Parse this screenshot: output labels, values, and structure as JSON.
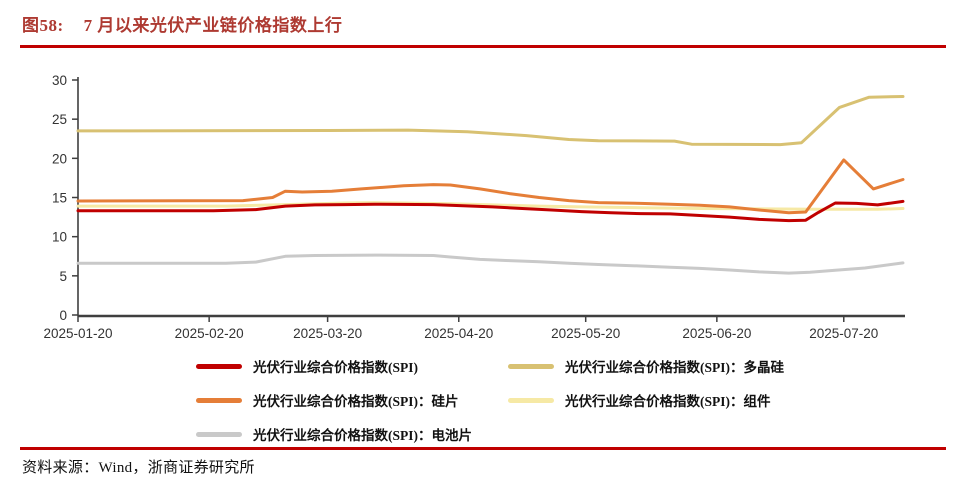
{
  "header": {
    "figure_label": "图58:",
    "title": "7 月以来光伏产业链价格指数上行"
  },
  "source": {
    "text": "资料来源：Wind，浙商证券研究所"
  },
  "colors": {
    "accent_rule": "#C00000",
    "title_text": "#AE3A32",
    "axis": "#3F3F3F",
    "tick_label": "#333333"
  },
  "chart_data": {
    "type": "line",
    "title": "7 月以来光伏产业链价格指数上行",
    "xlabel": "",
    "ylabel": "",
    "grid": false,
    "legend_position": "bottom",
    "ylim": [
      0,
      30
    ],
    "y_ticks": [
      0,
      5,
      10,
      15,
      20,
      25,
      30
    ],
    "x_range": [
      "2025-01-20",
      "2025-08-03"
    ],
    "x_ticks": [
      "2025-01-20",
      "2025-02-20",
      "2025-03-20",
      "2025-04-20",
      "2025-05-20",
      "2025-06-20",
      "2025-07-20"
    ],
    "axis_color": "#3F3F3F",
    "series": [
      {
        "name": "光伏行业综合价格指数(SPI)",
        "color": "#C00000",
        "points": [
          [
            "2025-01-20",
            13.3
          ],
          [
            "2025-02-21",
            13.3
          ],
          [
            "2025-03-03",
            13.45
          ],
          [
            "2025-03-10",
            13.9
          ],
          [
            "2025-03-17",
            14.05
          ],
          [
            "2025-03-24",
            14.1
          ],
          [
            "2025-03-31",
            14.15
          ],
          [
            "2025-04-14",
            14.1
          ],
          [
            "2025-04-21",
            13.95
          ],
          [
            "2025-04-28",
            13.8
          ],
          [
            "2025-05-05",
            13.6
          ],
          [
            "2025-05-12",
            13.4
          ],
          [
            "2025-05-19",
            13.2
          ],
          [
            "2025-05-26",
            13.05
          ],
          [
            "2025-06-02",
            12.95
          ],
          [
            "2025-06-09",
            12.9
          ],
          [
            "2025-06-16",
            12.7
          ],
          [
            "2025-06-23",
            12.5
          ],
          [
            "2025-06-30",
            12.2
          ],
          [
            "2025-07-07",
            12.05
          ],
          [
            "2025-07-11",
            12.1
          ],
          [
            "2025-07-14",
            13.1
          ],
          [
            "2025-07-18",
            14.3
          ],
          [
            "2025-07-23",
            14.25
          ],
          [
            "2025-07-28",
            14.05
          ],
          [
            "2025-08-03",
            14.5
          ]
        ]
      },
      {
        "name": "光伏行业综合价格指数(SPI)：多晶硅",
        "color": "#D8C172",
        "points": [
          [
            "2025-01-20",
            23.5
          ],
          [
            "2025-03-20",
            23.55
          ],
          [
            "2025-04-08",
            23.6
          ],
          [
            "2025-04-22",
            23.4
          ],
          [
            "2025-05-06",
            22.9
          ],
          [
            "2025-05-16",
            22.4
          ],
          [
            "2025-05-23",
            22.25
          ],
          [
            "2025-06-10",
            22.2
          ],
          [
            "2025-06-14",
            21.8
          ],
          [
            "2025-07-05",
            21.75
          ],
          [
            "2025-07-10",
            22.0
          ],
          [
            "2025-07-19",
            26.5
          ],
          [
            "2025-07-26",
            27.8
          ],
          [
            "2025-08-03",
            27.9
          ]
        ]
      },
      {
        "name": "光伏行业综合价格指数(SPI)：硅片",
        "color": "#E57E38",
        "points": [
          [
            "2025-01-20",
            14.55
          ],
          [
            "2025-02-28",
            14.6
          ],
          [
            "2025-03-07",
            15.0
          ],
          [
            "2025-03-10",
            15.8
          ],
          [
            "2025-03-14",
            15.7
          ],
          [
            "2025-03-21",
            15.8
          ],
          [
            "2025-03-28",
            16.1
          ],
          [
            "2025-04-07",
            16.5
          ],
          [
            "2025-04-14",
            16.65
          ],
          [
            "2025-04-18",
            16.6
          ],
          [
            "2025-04-25",
            16.1
          ],
          [
            "2025-05-02",
            15.5
          ],
          [
            "2025-05-09",
            15.0
          ],
          [
            "2025-05-16",
            14.6
          ],
          [
            "2025-05-23",
            14.35
          ],
          [
            "2025-06-02",
            14.25
          ],
          [
            "2025-06-09",
            14.15
          ],
          [
            "2025-06-16",
            14.0
          ],
          [
            "2025-06-23",
            13.8
          ],
          [
            "2025-06-30",
            13.4
          ],
          [
            "2025-07-07",
            13.05
          ],
          [
            "2025-07-11",
            13.15
          ],
          [
            "2025-07-20",
            19.8
          ],
          [
            "2025-07-27",
            16.1
          ],
          [
            "2025-08-03",
            17.3
          ]
        ]
      },
      {
        "name": "光伏行业综合价格指数(SPI)：组件",
        "color": "#F6E9A5",
        "points": [
          [
            "2025-01-20",
            13.9
          ],
          [
            "2025-02-24",
            13.9
          ],
          [
            "2025-03-10",
            14.1
          ],
          [
            "2025-03-24",
            14.3
          ],
          [
            "2025-03-31",
            14.35
          ],
          [
            "2025-04-07",
            14.3
          ],
          [
            "2025-04-18",
            14.2
          ],
          [
            "2025-04-28",
            14.05
          ],
          [
            "2025-05-09",
            13.9
          ],
          [
            "2025-05-19",
            13.8
          ],
          [
            "2025-06-02",
            13.7
          ],
          [
            "2025-06-16",
            13.6
          ],
          [
            "2025-06-30",
            13.55
          ],
          [
            "2025-07-14",
            13.5
          ],
          [
            "2025-07-28",
            13.5
          ],
          [
            "2025-08-03",
            13.6
          ]
        ]
      },
      {
        "name": "光伏行业综合价格指数(SPI)：电池片",
        "color": "#C9C9C9",
        "points": [
          [
            "2025-01-20",
            6.6
          ],
          [
            "2025-02-24",
            6.6
          ],
          [
            "2025-03-03",
            6.75
          ],
          [
            "2025-03-10",
            7.5
          ],
          [
            "2025-03-17",
            7.6
          ],
          [
            "2025-03-31",
            7.65
          ],
          [
            "2025-04-14",
            7.6
          ],
          [
            "2025-04-18",
            7.4
          ],
          [
            "2025-04-25",
            7.1
          ],
          [
            "2025-05-02",
            6.95
          ],
          [
            "2025-05-09",
            6.8
          ],
          [
            "2025-05-16",
            6.6
          ],
          [
            "2025-05-23",
            6.45
          ],
          [
            "2025-06-02",
            6.25
          ],
          [
            "2025-06-09",
            6.1
          ],
          [
            "2025-06-16",
            5.95
          ],
          [
            "2025-06-23",
            5.75
          ],
          [
            "2025-06-30",
            5.5
          ],
          [
            "2025-07-07",
            5.35
          ],
          [
            "2025-07-12",
            5.45
          ],
          [
            "2025-07-18",
            5.7
          ],
          [
            "2025-07-25",
            6.0
          ],
          [
            "2025-08-03",
            6.65
          ]
        ]
      }
    ]
  }
}
